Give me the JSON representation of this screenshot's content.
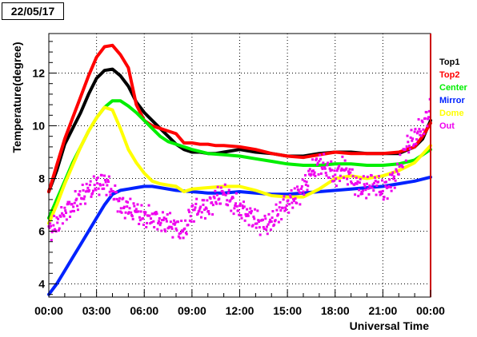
{
  "date_label": "22/05/17",
  "chart_data": {
    "type": "line",
    "title": "",
    "xlabel": "Universal Time",
    "ylabel": "Temperature(degree)",
    "xlim": [
      0,
      24
    ],
    "ylim": [
      3.5,
      13.5
    ],
    "grid": true,
    "legend_placement": "right",
    "x_ticks": [
      0,
      3,
      6,
      9,
      12,
      15,
      18,
      21,
      24
    ],
    "x_tick_labels": [
      "00:00",
      "03:00",
      "06:00",
      "09:00",
      "12:00",
      "15:00",
      "18:00",
      "21:00",
      "00:00"
    ],
    "y_ticks": [
      4,
      6,
      8,
      10,
      12
    ],
    "y_tick_labels": [
      "4",
      "6",
      "8",
      "10",
      "12"
    ],
    "series": [
      {
        "name": "Top1",
        "color": "#000000",
        "x": [
          0,
          0.5,
          1,
          1.5,
          2,
          2.5,
          3,
          3.5,
          4,
          4.5,
          5,
          5.5,
          6,
          6.5,
          7,
          7.5,
          8,
          8.5,
          9,
          9.5,
          10,
          10.5,
          11,
          12,
          13,
          14,
          15,
          16,
          17,
          18,
          19,
          20,
          21,
          22,
          23,
          23.5,
          24
        ],
        "y": [
          7.5,
          8.3,
          9.3,
          9.9,
          10.5,
          11.2,
          11.8,
          12.1,
          12.15,
          11.9,
          11.5,
          10.9,
          10.5,
          10.2,
          9.9,
          9.6,
          9.3,
          9.1,
          9.0,
          9.0,
          8.95,
          8.95,
          9.0,
          9.1,
          9.0,
          8.95,
          8.85,
          8.85,
          8.95,
          9.0,
          9.0,
          8.95,
          8.95,
          8.95,
          9.2,
          9.5,
          10.2
        ]
      },
      {
        "name": "Top2",
        "color": "#ff0000",
        "x": [
          0,
          0.5,
          1,
          1.5,
          2,
          2.5,
          3,
          3.5,
          4,
          4.5,
          5,
          5.5,
          6,
          6.5,
          7,
          7.5,
          8,
          8.5,
          9,
          9.5,
          10,
          10.5,
          11,
          12,
          13,
          14,
          15,
          16,
          17,
          18,
          19,
          20,
          21,
          22,
          23,
          23.5,
          24
        ],
        "y": [
          7.5,
          8.5,
          9.5,
          10.3,
          11.1,
          11.9,
          12.6,
          13.0,
          13.05,
          12.7,
          12.2,
          10.8,
          10.2,
          10.0,
          9.9,
          9.8,
          9.7,
          9.35,
          9.35,
          9.3,
          9.3,
          9.25,
          9.25,
          9.2,
          9.1,
          8.95,
          8.85,
          8.8,
          8.9,
          9.0,
          8.95,
          8.95,
          8.95,
          9.0,
          9.2,
          9.6,
          10.1
        ]
      },
      {
        "name": "Center",
        "color": "#00ee00",
        "x": [
          0,
          0.5,
          1,
          1.5,
          2,
          2.5,
          3,
          3.5,
          4,
          4.5,
          5,
          5.5,
          6,
          6.5,
          7,
          7.5,
          8,
          8.5,
          9,
          10,
          11,
          12,
          13,
          14,
          15,
          16,
          17,
          18,
          19,
          20,
          21,
          22,
          23,
          24
        ],
        "y": [
          6.5,
          7.2,
          7.9,
          8.6,
          9.2,
          9.8,
          10.3,
          10.7,
          10.95,
          10.95,
          10.75,
          10.5,
          10.2,
          9.9,
          9.6,
          9.4,
          9.3,
          9.2,
          9.1,
          8.95,
          8.9,
          8.85,
          8.75,
          8.65,
          8.55,
          8.5,
          8.5,
          8.55,
          8.55,
          8.5,
          8.5,
          8.55,
          8.7,
          9.1
        ]
      },
      {
        "name": "Mirror",
        "color": "#0022ff",
        "x": [
          0,
          0.5,
          1,
          1.5,
          2,
          2.5,
          3,
          3.5,
          4,
          4.5,
          5,
          5.5,
          6,
          6.5,
          7,
          8,
          9,
          10,
          11,
          12,
          13,
          14,
          15,
          16,
          17,
          18,
          19,
          20,
          21,
          22,
          23,
          24
        ],
        "y": [
          3.6,
          4.0,
          4.5,
          5.0,
          5.5,
          6.0,
          6.5,
          7.0,
          7.4,
          7.55,
          7.6,
          7.65,
          7.7,
          7.7,
          7.65,
          7.55,
          7.5,
          7.45,
          7.45,
          7.5,
          7.45,
          7.4,
          7.4,
          7.45,
          7.5,
          7.55,
          7.6,
          7.65,
          7.7,
          7.8,
          7.9,
          8.05
        ]
      },
      {
        "name": "Dome",
        "color": "#ffff00",
        "x": [
          0,
          0.5,
          1,
          1.5,
          2,
          2.5,
          3,
          3.5,
          4,
          4.5,
          5,
          5.5,
          6,
          6.5,
          7,
          7.5,
          8,
          8.5,
          9,
          10,
          11,
          12,
          13,
          14,
          15,
          16,
          17,
          18,
          19,
          20,
          21,
          22,
          23,
          24
        ],
        "y": [
          6.3,
          7.0,
          7.8,
          8.5,
          9.2,
          9.8,
          10.3,
          10.7,
          10.6,
          9.9,
          9.1,
          8.6,
          8.2,
          7.9,
          7.8,
          7.75,
          7.7,
          7.5,
          7.6,
          7.65,
          7.7,
          7.7,
          7.55,
          7.35,
          7.3,
          7.3,
          7.6,
          8.0,
          8.1,
          8.0,
          8.1,
          8.3,
          8.6,
          9.25
        ]
      },
      {
        "name": "Out",
        "color": "#ee00ee",
        "x": [
          0,
          0.5,
          1,
          1.5,
          2,
          2.5,
          3,
          3.5,
          4,
          4.5,
          5,
          5.5,
          6,
          6.5,
          7,
          7.5,
          8,
          8.5,
          9,
          9.5,
          10,
          10.5,
          11,
          11.5,
          12,
          12.5,
          13,
          13.5,
          14,
          14.5,
          15,
          15.5,
          16,
          16.5,
          17,
          17.5,
          18,
          18.5,
          19,
          19.5,
          20,
          20.5,
          21,
          21.5,
          22,
          22.5,
          23,
          23.5,
          24
        ],
        "y": [
          6.0,
          6.2,
          6.8,
          7.0,
          7.3,
          7.5,
          7.7,
          7.9,
          7.6,
          7.0,
          6.8,
          6.7,
          6.5,
          6.6,
          6.4,
          6.3,
          6.1,
          5.9,
          6.8,
          6.9,
          6.9,
          7.2,
          7.4,
          7.1,
          6.9,
          6.7,
          6.4,
          6.2,
          6.3,
          6.8,
          7.1,
          7.3,
          7.6,
          8.2,
          8.6,
          8.4,
          8.1,
          8.4,
          8.0,
          7.6,
          7.7,
          7.9,
          7.5,
          7.8,
          8.3,
          9.2,
          9.6,
          10.0,
          10.6
        ]
      }
    ]
  }
}
